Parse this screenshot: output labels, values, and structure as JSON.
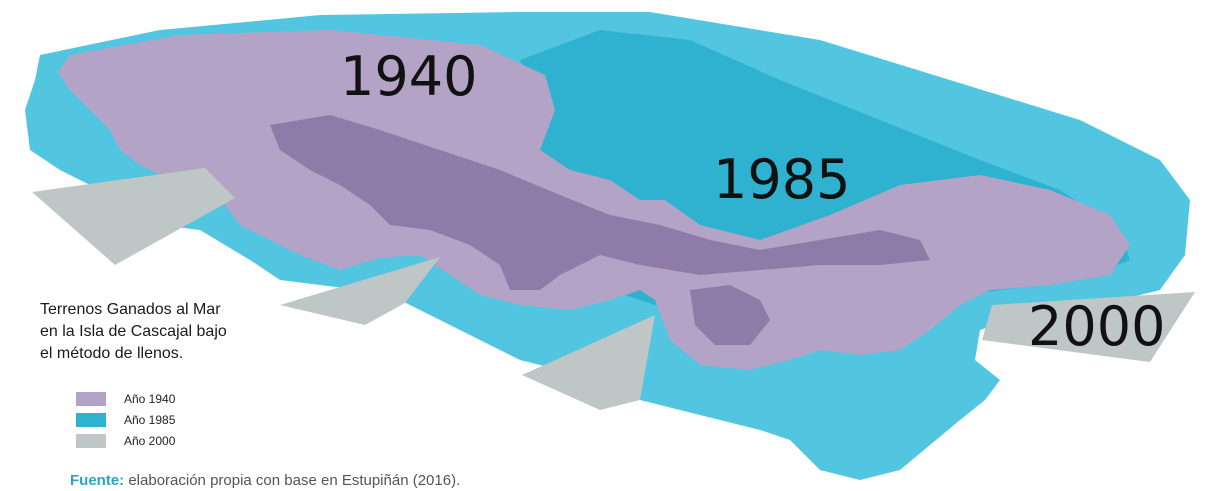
{
  "map": {
    "year_labels": {
      "y1940": "1940",
      "y1985": "1985",
      "y2000": "2000"
    }
  },
  "title_lines": [
    "Terrenos Ganados al Mar",
    "en la Isla de Cascajal bajo",
    "el método de llenos."
  ],
  "legend": [
    {
      "label": "Año 1940",
      "color": "#b3a3c6"
    },
    {
      "label": "Año 1985",
      "color": "#2fb2cf"
    },
    {
      "label": "Año 2000",
      "color": "#bfc7c6"
    }
  ],
  "source": {
    "key": "Fuente:",
    "text": "elaboración propia con base en Estupiñán (2016)."
  },
  "colors": {
    "fill_1940": "#b3a3c6",
    "fill_1940_dark": "#8f7ba8",
    "fill_1985": "#2fb2cf",
    "fill_1985_light": "#52c5e0",
    "fill_2000": "#bfc7c6"
  }
}
